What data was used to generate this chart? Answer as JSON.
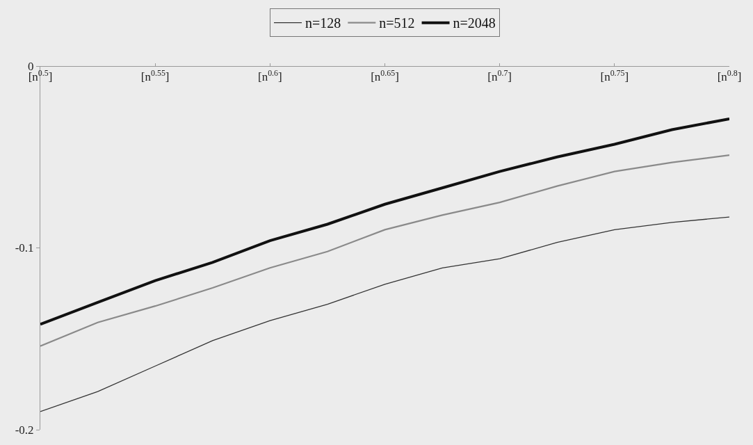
{
  "chart_data": {
    "type": "line",
    "categories": [
      "[n$^{0.5}$]",
      null,
      "[n$^{0.55}$]",
      null,
      "[n$^{0.6}$]",
      null,
      "[n$^{0.65}$]",
      null,
      "[n$^{0.7}$]",
      null,
      "[n$^{0.75}$]",
      null,
      "[n$^{0.8}$]"
    ],
    "series": [
      {
        "name": "n=128",
        "color": "#333333",
        "values": [
          -0.19,
          -0.179,
          -0.165,
          -0.151,
          -0.14,
          -0.131,
          -0.12,
          -0.111,
          -0.106,
          -0.097,
          -0.09,
          -0.086,
          -0.083
        ]
      },
      {
        "name": "n=512",
        "color": "#8a8a8a",
        "values": [
          -0.154,
          -0.141,
          -0.132,
          -0.122,
          -0.111,
          -0.102,
          -0.09,
          -0.082,
          -0.075,
          -0.066,
          -0.058,
          -0.053,
          -0.049
        ]
      },
      {
        "name": "n=2048",
        "color": "#111111",
        "values": [
          -0.142,
          -0.13,
          -0.118,
          -0.108,
          -0.096,
          -0.087,
          -0.076,
          -0.067,
          -0.058,
          -0.05,
          -0.043,
          -0.035,
          -0.029
        ]
      }
    ],
    "ylim": [
      -0.2,
      0
    ],
    "yticks": [
      0,
      -0.1,
      -0.2
    ],
    "grid": false,
    "legend": "top",
    "marker": "none",
    "line_style": "solid"
  }
}
